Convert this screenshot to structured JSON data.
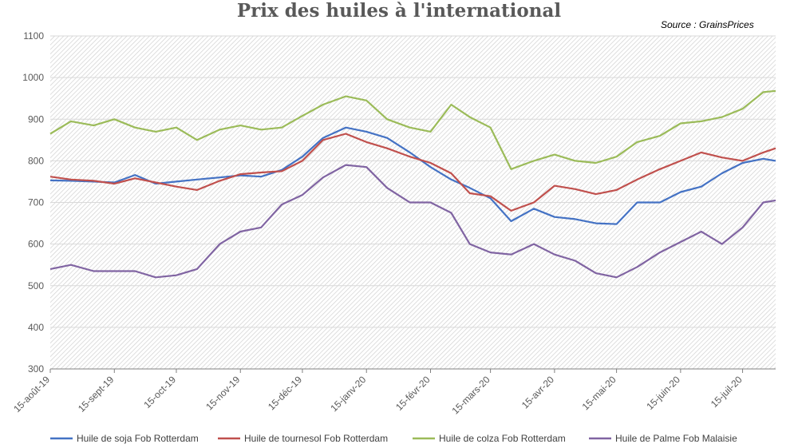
{
  "chart_data": {
    "type": "line",
    "title": "Prix des huiles à l'international",
    "source": "Source : GrainsPrices",
    "xlabel": "",
    "ylabel": "",
    "ylim": [
      300,
      1100
    ],
    "yticks": [
      300,
      400,
      500,
      600,
      700,
      800,
      900,
      1000,
      1100
    ],
    "xlim": [
      "2019-08-15",
      "2020-07-31"
    ],
    "xticks": [
      {
        "date": "2019-08-15",
        "label": "15-août-19"
      },
      {
        "date": "2019-09-15",
        "label": "15-sept-19"
      },
      {
        "date": "2019-10-15",
        "label": "15-oct-19"
      },
      {
        "date": "2019-11-15",
        "label": "15-nov-19"
      },
      {
        "date": "2019-12-15",
        "label": "15-déc-19"
      },
      {
        "date": "2020-01-15",
        "label": "15-janv-20"
      },
      {
        "date": "2020-02-15",
        "label": "15-févr-20"
      },
      {
        "date": "2020-03-15",
        "label": "15-mars-20"
      },
      {
        "date": "2020-04-15",
        "label": "15-avr-20"
      },
      {
        "date": "2020-05-15",
        "label": "15-mai-20"
      },
      {
        "date": "2020-06-15",
        "label": "15-juin-20"
      },
      {
        "date": "2020-07-15",
        "label": "15-juil-20"
      }
    ],
    "grid": true,
    "legend_position": "bottom",
    "series": [
      {
        "name": "Huile de soja Fob Rotterdam",
        "color": "#4472C4",
        "points": [
          [
            "2019-08-15",
            753
          ],
          [
            "2019-08-25",
            752
          ],
          [
            "2019-09-05",
            750
          ],
          [
            "2019-09-15",
            748
          ],
          [
            "2019-09-25",
            766
          ],
          [
            "2019-10-05",
            745
          ],
          [
            "2019-10-15",
            750
          ],
          [
            "2019-10-25",
            755
          ],
          [
            "2019-11-05",
            760
          ],
          [
            "2019-11-15",
            765
          ],
          [
            "2019-11-25",
            762
          ],
          [
            "2019-12-05",
            778
          ],
          [
            "2019-12-15",
            810
          ],
          [
            "2019-12-25",
            855
          ],
          [
            "2020-01-05",
            880
          ],
          [
            "2020-01-15",
            870
          ],
          [
            "2020-01-25",
            855
          ],
          [
            "2020-02-05",
            820
          ],
          [
            "2020-02-15",
            785
          ],
          [
            "2020-02-25",
            755
          ],
          [
            "2020-03-05",
            735
          ],
          [
            "2020-03-15",
            710
          ],
          [
            "2020-03-25",
            655
          ],
          [
            "2020-04-05",
            685
          ],
          [
            "2020-04-15",
            665
          ],
          [
            "2020-04-25",
            660
          ],
          [
            "2020-05-05",
            650
          ],
          [
            "2020-05-15",
            648
          ],
          [
            "2020-05-25",
            700
          ],
          [
            "2020-06-05",
            700
          ],
          [
            "2020-06-15",
            725
          ],
          [
            "2020-06-25",
            738
          ],
          [
            "2020-07-05",
            770
          ],
          [
            "2020-07-15",
            795
          ],
          [
            "2020-07-25",
            805
          ],
          [
            "2020-07-31",
            800
          ]
        ]
      },
      {
        "name": "Huile de tournesol Fob Rotterdam",
        "color": "#C0504D",
        "points": [
          [
            "2019-08-15",
            762
          ],
          [
            "2019-08-25",
            755
          ],
          [
            "2019-09-05",
            752
          ],
          [
            "2019-09-15",
            745
          ],
          [
            "2019-09-25",
            758
          ],
          [
            "2019-10-05",
            748
          ],
          [
            "2019-10-15",
            738
          ],
          [
            "2019-10-25",
            730
          ],
          [
            "2019-11-05",
            752
          ],
          [
            "2019-11-15",
            768
          ],
          [
            "2019-11-25",
            772
          ],
          [
            "2019-12-05",
            775
          ],
          [
            "2019-12-15",
            800
          ],
          [
            "2019-12-25",
            850
          ],
          [
            "2020-01-05",
            865
          ],
          [
            "2020-01-15",
            845
          ],
          [
            "2020-01-25",
            830
          ],
          [
            "2020-02-05",
            810
          ],
          [
            "2020-02-15",
            795
          ],
          [
            "2020-02-25",
            770
          ],
          [
            "2020-03-05",
            722
          ],
          [
            "2020-03-15",
            715
          ],
          [
            "2020-03-25",
            680
          ],
          [
            "2020-04-05",
            700
          ],
          [
            "2020-04-15",
            740
          ],
          [
            "2020-04-25",
            732
          ],
          [
            "2020-05-05",
            720
          ],
          [
            "2020-05-15",
            730
          ],
          [
            "2020-05-25",
            755
          ],
          [
            "2020-06-05",
            780
          ],
          [
            "2020-06-15",
            800
          ],
          [
            "2020-06-25",
            820
          ],
          [
            "2020-07-05",
            808
          ],
          [
            "2020-07-15",
            800
          ],
          [
            "2020-07-25",
            820
          ],
          [
            "2020-07-31",
            830
          ]
        ]
      },
      {
        "name": "Huile de colza Fob Rotterdam",
        "color": "#9BBB59",
        "points": [
          [
            "2019-08-15",
            865
          ],
          [
            "2019-08-25",
            895
          ],
          [
            "2019-09-05",
            885
          ],
          [
            "2019-09-15",
            900
          ],
          [
            "2019-09-25",
            880
          ],
          [
            "2019-10-05",
            870
          ],
          [
            "2019-10-15",
            880
          ],
          [
            "2019-10-25",
            850
          ],
          [
            "2019-11-05",
            875
          ],
          [
            "2019-11-15",
            885
          ],
          [
            "2019-11-25",
            875
          ],
          [
            "2019-12-05",
            880
          ],
          [
            "2019-12-15",
            908
          ],
          [
            "2019-12-25",
            935
          ],
          [
            "2020-01-05",
            955
          ],
          [
            "2020-01-15",
            945
          ],
          [
            "2020-01-25",
            900
          ],
          [
            "2020-02-05",
            880
          ],
          [
            "2020-02-15",
            870
          ],
          [
            "2020-02-25",
            935
          ],
          [
            "2020-03-05",
            905
          ],
          [
            "2020-03-15",
            880
          ],
          [
            "2020-03-25",
            780
          ],
          [
            "2020-04-05",
            800
          ],
          [
            "2020-04-15",
            815
          ],
          [
            "2020-04-25",
            800
          ],
          [
            "2020-05-05",
            795
          ],
          [
            "2020-05-15",
            810
          ],
          [
            "2020-05-25",
            845
          ],
          [
            "2020-06-05",
            860
          ],
          [
            "2020-06-15",
            890
          ],
          [
            "2020-06-25",
            895
          ],
          [
            "2020-07-05",
            905
          ],
          [
            "2020-07-15",
            925
          ],
          [
            "2020-07-25",
            965
          ],
          [
            "2020-07-31",
            968
          ]
        ]
      },
      {
        "name": "Huile de Palme Fob Malaisie",
        "color": "#8064A2",
        "points": [
          [
            "2019-08-15",
            540
          ],
          [
            "2019-08-25",
            550
          ],
          [
            "2019-09-05",
            535
          ],
          [
            "2019-09-15",
            535
          ],
          [
            "2019-09-25",
            535
          ],
          [
            "2019-10-05",
            520
          ],
          [
            "2019-10-15",
            525
          ],
          [
            "2019-10-25",
            540
          ],
          [
            "2019-11-05",
            600
          ],
          [
            "2019-11-15",
            630
          ],
          [
            "2019-11-25",
            640
          ],
          [
            "2019-12-05",
            695
          ],
          [
            "2019-12-15",
            718
          ],
          [
            "2019-12-25",
            760
          ],
          [
            "2020-01-05",
            790
          ],
          [
            "2020-01-15",
            785
          ],
          [
            "2020-01-25",
            735
          ],
          [
            "2020-02-05",
            700
          ],
          [
            "2020-02-15",
            700
          ],
          [
            "2020-02-25",
            675
          ],
          [
            "2020-03-05",
            600
          ],
          [
            "2020-03-15",
            580
          ],
          [
            "2020-03-25",
            575
          ],
          [
            "2020-04-05",
            600
          ],
          [
            "2020-04-15",
            575
          ],
          [
            "2020-04-25",
            560
          ],
          [
            "2020-05-05",
            530
          ],
          [
            "2020-05-15",
            520
          ],
          [
            "2020-05-25",
            545
          ],
          [
            "2020-06-05",
            580
          ],
          [
            "2020-06-15",
            605
          ],
          [
            "2020-06-25",
            630
          ],
          [
            "2020-07-05",
            600
          ],
          [
            "2020-07-15",
            640
          ],
          [
            "2020-07-25",
            700
          ],
          [
            "2020-07-31",
            705
          ]
        ]
      }
    ]
  }
}
